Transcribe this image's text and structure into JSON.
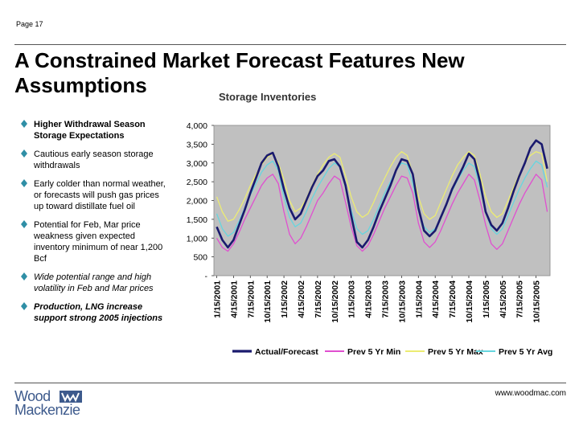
{
  "header": {
    "page_label": "Page 17"
  },
  "slide": {
    "title": "A Constrained Market Forecast Features New Assumptions",
    "bullets": [
      {
        "text": "Higher Withdrawal Season Storage Expectations",
        "style": "bold"
      },
      {
        "text": "Cautious early season storage withdrawals",
        "style": "normal"
      },
      {
        "text": "Early colder than normal weather, or forecasts will push gas prices up toward distillate fuel oil",
        "style": "normal"
      },
      {
        "text": "Potential for Feb, Mar price weakness given expected inventory minimum of near 1,200 Bcf",
        "style": "normal"
      },
      {
        "text": "Wide potential range and high volatility in Feb and Mar prices",
        "style": "italic"
      },
      {
        "text": "Production, LNG increase support strong 2005 injections",
        "style": "bold-italic"
      }
    ],
    "bullet_color": "#2f8fa6"
  },
  "chart_data": {
    "type": "line",
    "title": "Storage Inventories",
    "ylim": [
      0,
      4000
    ],
    "y_ticks": [
      "-",
      "500",
      "1,000",
      "1,500",
      "2,000",
      "2,500",
      "3,000",
      "3,500",
      "4,000"
    ],
    "y_tick_values": [
      0,
      500,
      1000,
      1500,
      2000,
      2500,
      3000,
      3500,
      4000
    ],
    "x_tick_labels": [
      "1/15/2001",
      "4/15/2001",
      "7/15/2001",
      "10/15/2001",
      "1/15/2002",
      "4/15/2002",
      "7/15/2002",
      "10/15/2002",
      "1/15/2003",
      "4/15/2003",
      "7/15/2003",
      "10/15/2003",
      "1/15/2004",
      "4/15/2004",
      "7/15/2004",
      "10/15/2004",
      "1/15/2005",
      "4/15/2005",
      "7/15/2005",
      "10/15/2005"
    ],
    "x": [
      "2001-01",
      "2001-02",
      "2001-03",
      "2001-04",
      "2001-05",
      "2001-06",
      "2001-07",
      "2001-08",
      "2001-09",
      "2001-10",
      "2001-11",
      "2001-12",
      "2002-01",
      "2002-02",
      "2002-03",
      "2002-04",
      "2002-05",
      "2002-06",
      "2002-07",
      "2002-08",
      "2002-09",
      "2002-10",
      "2002-11",
      "2002-12",
      "2003-01",
      "2003-02",
      "2003-03",
      "2003-04",
      "2003-05",
      "2003-06",
      "2003-07",
      "2003-08",
      "2003-09",
      "2003-10",
      "2003-11",
      "2003-12",
      "2004-01",
      "2004-02",
      "2004-03",
      "2004-04",
      "2004-05",
      "2004-06",
      "2004-07",
      "2004-08",
      "2004-09",
      "2004-10",
      "2004-11",
      "2004-12",
      "2005-01",
      "2005-02",
      "2005-03",
      "2005-04",
      "2005-05",
      "2005-06",
      "2005-07",
      "2005-08",
      "2005-09",
      "2005-10",
      "2005-11",
      "2005-12"
    ],
    "series": [
      {
        "name": "Actual/Forecast",
        "color": "#1a1a6e",
        "width": 2.6,
        "values": [
          1300,
          950,
          750,
          950,
          1350,
          1750,
          2200,
          2600,
          3000,
          3200,
          3270,
          2900,
          2300,
          1800,
          1500,
          1650,
          2000,
          2350,
          2650,
          2800,
          3050,
          3100,
          2900,
          2400,
          1600,
          900,
          750,
          950,
          1300,
          1700,
          2050,
          2400,
          2800,
          3100,
          3050,
          2700,
          1800,
          1200,
          1050,
          1200,
          1550,
          1900,
          2300,
          2600,
          2900,
          3250,
          3100,
          2500,
          1700,
          1350,
          1200,
          1400,
          1800,
          2250,
          2650,
          3000,
          3400,
          3600,
          3500,
          2850
        ]
      },
      {
        "name": "Prev 5 Yr Min",
        "color": "#e04fd0",
        "width": 1.3,
        "values": [
          1000,
          750,
          650,
          850,
          1150,
          1500,
          1800,
          2100,
          2400,
          2600,
          2700,
          2450,
          1700,
          1100,
          850,
          1000,
          1300,
          1650,
          2000,
          2200,
          2450,
          2650,
          2550,
          1950,
          1300,
          800,
          650,
          800,
          1100,
          1450,
          1800,
          2100,
          2400,
          2650,
          2600,
          2200,
          1400,
          900,
          750,
          900,
          1200,
          1550,
          1900,
          2200,
          2450,
          2700,
          2550,
          2000,
          1350,
          850,
          700,
          850,
          1200,
          1550,
          1900,
          2200,
          2450,
          2700,
          2550,
          1700
        ]
      },
      {
        "name": "Prev 5 Yr Max",
        "color": "#ecec72",
        "width": 1.3,
        "values": [
          2100,
          1700,
          1450,
          1500,
          1750,
          2050,
          2400,
          2700,
          2950,
          3150,
          3250,
          3000,
          2550,
          2000,
          1700,
          1800,
          2050,
          2400,
          2700,
          2950,
          3150,
          3250,
          3150,
          2650,
          2100,
          1700,
          1550,
          1650,
          1950,
          2300,
          2600,
          2900,
          3150,
          3300,
          3200,
          2700,
          2100,
          1650,
          1500,
          1600,
          1950,
          2300,
          2650,
          2950,
          3150,
          3300,
          3200,
          2700,
          2100,
          1700,
          1550,
          1650,
          2000,
          2350,
          2700,
          3000,
          3200,
          3300,
          3250,
          2500
        ]
      },
      {
        "name": "Prev 5 Yr Avg",
        "color": "#66d6df",
        "width": 1.3,
        "values": [
          1650,
          1250,
          1050,
          1150,
          1450,
          1800,
          2150,
          2450,
          2750,
          2950,
          3050,
          2800,
          2100,
          1550,
          1300,
          1400,
          1700,
          2050,
          2350,
          2600,
          2850,
          3000,
          2900,
          2350,
          1750,
          1250,
          1100,
          1200,
          1500,
          1850,
          2200,
          2500,
          2800,
          3000,
          2950,
          2450,
          1750,
          1300,
          1150,
          1250,
          1550,
          1900,
          2250,
          2550,
          2800,
          3000,
          2900,
          2350,
          1700,
          1250,
          1100,
          1250,
          1600,
          1950,
          2300,
          2600,
          2850,
          3050,
          2950,
          2350
        ]
      }
    ],
    "legend_placement": "bottom",
    "grid": false,
    "plot_background": "#c0c0c0"
  },
  "footer": {
    "url": "www.woodmac.com",
    "logo_line1": "Wood",
    "logo_line2": "Mackenzie",
    "brand_color": "#3d5a8c"
  }
}
